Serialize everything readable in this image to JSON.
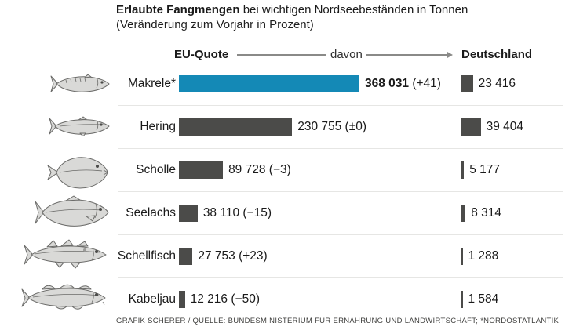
{
  "title": {
    "emphasis": "Erlaubte Fangmengen",
    "rest": "bei wichtigen Nordseebeständen in Tonnen",
    "subtitle": "(Veränderung zum Vorjahr in Prozent)"
  },
  "header": {
    "eu_quota_label": "EU-Quote",
    "davon_label": "davon",
    "germany_label": "Deutschland"
  },
  "rows": [
    {
      "label": "Makrele*",
      "fish": "makrele",
      "eu_display": "368 031",
      "eu_change": "(+41)",
      "de_display": "23 416",
      "highlight": true
    },
    {
      "label": "Hering",
      "fish": "hering",
      "eu_display": "230 755",
      "eu_change": "(±0)",
      "de_display": "39 404",
      "highlight": false
    },
    {
      "label": "Scholle",
      "fish": "scholle",
      "eu_display": "89 728",
      "eu_change": "(−3)",
      "de_display": "5 177",
      "highlight": false
    },
    {
      "label": "Seelachs",
      "fish": "seelachs",
      "eu_display": "38 110",
      "eu_change": "(−15)",
      "de_display": "8 314",
      "highlight": false
    },
    {
      "label": "Schellfisch",
      "fish": "schellfisch",
      "eu_display": "27 753",
      "eu_change": "(+23)",
      "de_display": "1 288",
      "highlight": false
    },
    {
      "label": "Kabeljau",
      "fish": "kabeljau",
      "eu_display": "12 216",
      "eu_change": "(−50)",
      "de_display": "1 584",
      "highlight": false
    }
  ],
  "footer": {
    "credit": "GRAFIK SCHERER / QUELLE: BUNDESMINISTERIUM FÜR ERNÄHRUNG UND LANDWIRTSCHAFT; *NORDOSTATLANTIK"
  },
  "colors": {
    "highlight_bar": "#1489b6",
    "bar": "#4b4b49",
    "text": "#1a1a1a",
    "connector": "#8a8a88",
    "separator": "#e6e6e4"
  },
  "chart_data": {
    "type": "bar",
    "orientation": "horizontal",
    "title": "Erlaubte Fangmengen bei wichtigen Nordseebeständen in Tonnen",
    "subtitle": "(Veränderung zum Vorjahr in Prozent)",
    "unit": "Tonnen",
    "categories": [
      "Makrele*",
      "Hering",
      "Scholle",
      "Seelachs",
      "Schellfisch",
      "Kabeljau"
    ],
    "series": [
      {
        "name": "EU-Quote",
        "values": [
          368031,
          230755,
          89728,
          38110,
          27753,
          12216
        ]
      },
      {
        "name": "davon Deutschland",
        "values": [
          23416,
          39404,
          5177,
          8314,
          1288,
          1584
        ]
      }
    ],
    "change_vs_previous_year_percent": [
      "+41",
      "±0",
      "-3",
      "-15",
      "+23",
      "-50"
    ],
    "highlighted_category": "Makrele*",
    "footnote": "*NORDOSTATLANTIK",
    "legend_position": "top",
    "grid": false
  }
}
